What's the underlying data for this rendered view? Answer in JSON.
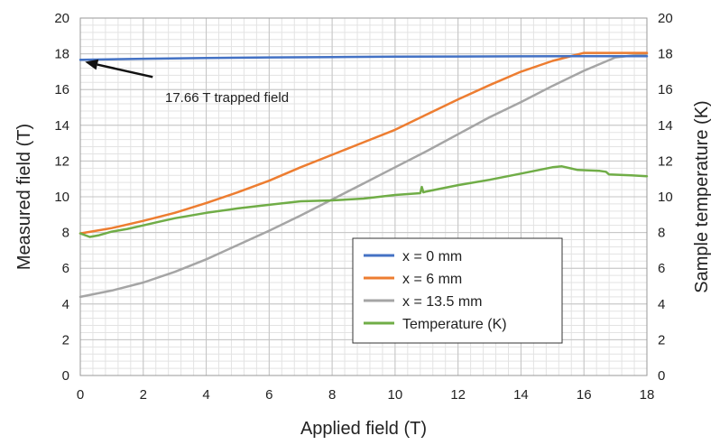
{
  "chart_data": {
    "type": "line",
    "xlabel": "Applied field (T)",
    "ylabel": "Measured field (T)",
    "y2label": "Sample temperature (K)",
    "xlim": [
      0,
      18
    ],
    "ylim": [
      0,
      20
    ],
    "y2lim": [
      0,
      20
    ],
    "xticks": [
      "0",
      "2",
      "4",
      "6",
      "8",
      "10",
      "12",
      "14",
      "16",
      "18"
    ],
    "yticks": [
      "0",
      "2",
      "4",
      "6",
      "8",
      "10",
      "12",
      "14",
      "16",
      "18",
      "20"
    ],
    "y2ticks": [
      "0",
      "2",
      "4",
      "6",
      "8",
      "10",
      "12",
      "14",
      "16",
      "18",
      "20"
    ],
    "grid": true,
    "legend_position": "bottom-right",
    "series": [
      {
        "name": "x = 0 mm",
        "color": "#4472C4",
        "axis": "left",
        "x": [
          0,
          2,
          4,
          6,
          8,
          10,
          12,
          14,
          16,
          17,
          18
        ],
        "y": [
          17.66,
          17.72,
          17.77,
          17.8,
          17.82,
          17.84,
          17.85,
          17.86,
          17.87,
          17.87,
          17.87
        ]
      },
      {
        "name": "x = 6 mm",
        "color": "#ED7D31",
        "axis": "left",
        "x": [
          0,
          1,
          2,
          3,
          4,
          5,
          6,
          7,
          8,
          9,
          10,
          11,
          12,
          13,
          14,
          15,
          16,
          17,
          18
        ],
        "y": [
          7.95,
          8.25,
          8.65,
          9.1,
          9.65,
          10.25,
          10.9,
          11.65,
          12.35,
          13.05,
          13.75,
          14.6,
          15.45,
          16.25,
          17.0,
          17.6,
          18.05,
          18.05,
          18.05
        ]
      },
      {
        "name": "x = 13.5 mm",
        "color": "#A5A5A5",
        "axis": "left",
        "x": [
          0,
          1,
          2,
          3,
          4,
          5,
          6,
          7,
          8,
          9,
          10,
          11,
          12,
          13,
          14,
          15,
          16,
          17,
          18
        ],
        "y": [
          4.4,
          4.75,
          5.2,
          5.8,
          6.5,
          7.3,
          8.1,
          8.95,
          9.85,
          10.75,
          11.65,
          12.55,
          13.5,
          14.45,
          15.3,
          16.2,
          17.05,
          17.8,
          18.0
        ]
      },
      {
        "name": "Temperature (K)",
        "color": "#70AD47",
        "axis": "right",
        "x": [
          0,
          0.3,
          0.6,
          1,
          1.5,
          2,
          2.5,
          3,
          4,
          5,
          6,
          7,
          8,
          9,
          10,
          10.8,
          10.85,
          10.9,
          11,
          12,
          13,
          14,
          15,
          15.3,
          15.8,
          16.5,
          16.7,
          16.8,
          17.5,
          18
        ],
        "y": [
          7.95,
          7.75,
          7.85,
          8.05,
          8.2,
          8.4,
          8.6,
          8.8,
          9.1,
          9.35,
          9.55,
          9.75,
          9.8,
          9.9,
          10.1,
          10.2,
          10.55,
          10.25,
          10.3,
          10.65,
          10.95,
          11.3,
          11.65,
          11.7,
          11.5,
          11.45,
          11.4,
          11.25,
          11.2,
          11.15
        ]
      }
    ],
    "annotation": {
      "text": "17.66 T trapped field",
      "arrow_from": [
        2.3,
        16.7
      ],
      "arrow_to": [
        0.15,
        17.55
      ]
    }
  }
}
